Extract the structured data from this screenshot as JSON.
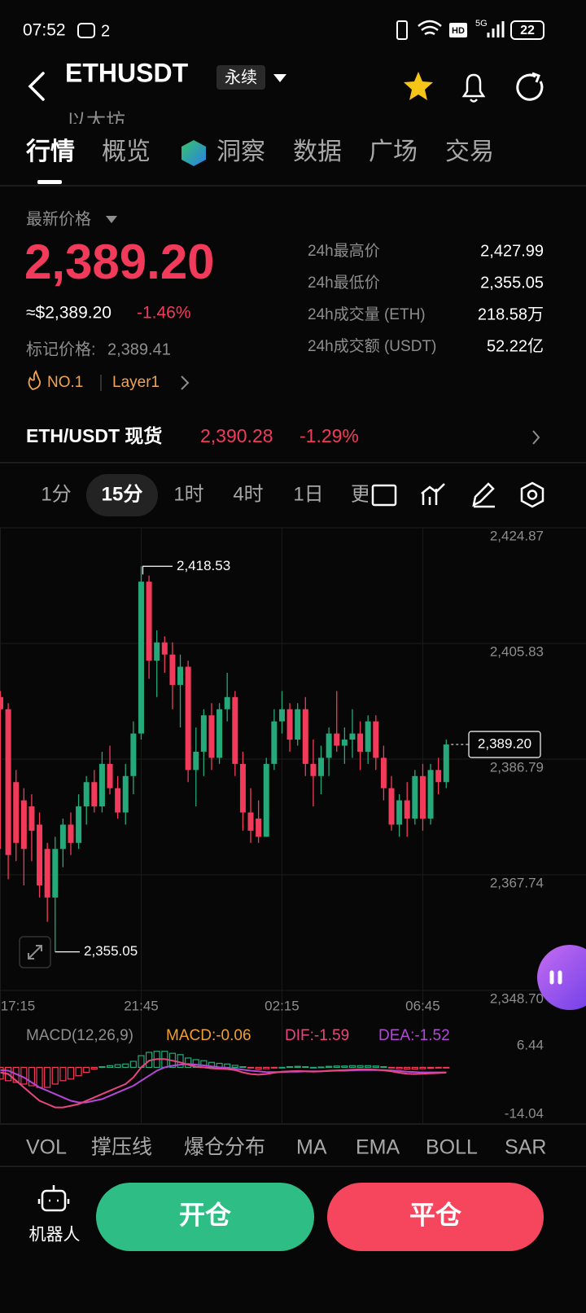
{
  "status_bar": {
    "time": "07:52",
    "notification_count": "2",
    "hd": "HD",
    "network": "5G",
    "battery": "22"
  },
  "header": {
    "symbol": "ETHUSDT",
    "contract_type": "永续",
    "subtitle": "以太坊"
  },
  "tabs": {
    "items": [
      "行情",
      "概览",
      "洞察",
      "数据",
      "广场",
      "交易"
    ],
    "active": 0
  },
  "price": {
    "label": "最新价格",
    "last": "2,389.20",
    "usd": "≈$2,389.20",
    "change": "-1.46%",
    "mark_label": "标记价格:",
    "mark_price": "2,389.41",
    "rank": "NO.1",
    "tag": "Layer1"
  },
  "stats": [
    {
      "label": "24h最高价",
      "value": "2,427.99"
    },
    {
      "label": "24h最低价",
      "value": "2,355.05"
    },
    {
      "label": "24h成交量 (ETH)",
      "value": "218.58万"
    },
    {
      "label": "24h成交额 (USDT)",
      "value": "52.22亿"
    }
  ],
  "spot": {
    "pair": "ETH/USDT 现货",
    "price": "2,390.28",
    "change": "-1.29%"
  },
  "intervals": {
    "items": [
      "1分",
      "15分",
      "1时",
      "4时",
      "1日",
      "更"
    ],
    "active": 1
  },
  "chart": {
    "type": "candlestick",
    "up_color": "#25a87a",
    "down_color": "#f23b5b",
    "ylim": [
      2348.7,
      2424.87
    ],
    "yticks": [
      {
        "value": 2424.87,
        "label": "2,424.87"
      },
      {
        "value": 2405.83,
        "label": "2,405.83"
      },
      {
        "value": 2386.79,
        "label": "2,386.79"
      },
      {
        "value": 2367.74,
        "label": "2,367.74"
      },
      {
        "value": 2348.7,
        "label": "2,348.70"
      }
    ],
    "categories": [
      "17:15",
      null,
      null,
      null,
      null,
      null,
      null,
      null,
      null,
      null,
      null,
      null,
      null,
      null,
      null,
      null,
      null,
      null,
      "21:45",
      null,
      null,
      null,
      null,
      null,
      null,
      null,
      null,
      null,
      null,
      null,
      null,
      null,
      null,
      null,
      null,
      null,
      "02:15",
      null,
      null,
      null,
      null,
      null,
      null,
      null,
      null,
      null,
      null,
      null,
      null,
      null,
      null,
      null,
      null,
      null,
      "06:45",
      null,
      null,
      null
    ],
    "open": [
      2397,
      2395,
      2383,
      2380,
      2379,
      2376,
      2372,
      2364,
      2372,
      2376,
      2373,
      2379,
      2383,
      2379,
      2386,
      2382,
      2378,
      2384,
      2391,
      2416,
      2403,
      2406,
      2404,
      2399,
      2402,
      2385,
      2388,
      2394,
      2387,
      2395,
      2397,
      2386,
      2378,
      2377,
      2374,
      2386,
      2393,
      2395,
      2390,
      2395,
      2386,
      2384,
      2387,
      2391,
      2389,
      2390,
      2391,
      2388,
      2393,
      2387,
      2382,
      2376,
      2380,
      2377,
      2384,
      2377,
      2385,
      2383
    ],
    "high": [
      2398,
      2396,
      2385,
      2382,
      2381,
      2378,
      2373,
      2374,
      2377,
      2378,
      2381,
      2384,
      2385,
      2388,
      2389,
      2384,
      2386,
      2393,
      2418.53,
      2417,
      2408,
      2407,
      2406,
      2404,
      2403,
      2392,
      2395,
      2396,
      2396,
      2401,
      2398,
      2388,
      2382,
      2380,
      2387,
      2395,
      2398,
      2396,
      2396,
      2397,
      2390,
      2389,
      2392,
      2398,
      2392,
      2395,
      2393,
      2394,
      2394,
      2389,
      2384,
      2381,
      2383,
      2385,
      2386,
      2386,
      2387,
      2390
    ],
    "low": [
      2372,
      2367,
      2370,
      2366,
      2370,
      2364,
      2360,
      2355.05,
      2369,
      2371,
      2372,
      2376,
      2378,
      2378,
      2381,
      2377,
      2376,
      2381,
      2390,
      2400,
      2397,
      2401,
      2395,
      2392,
      2383,
      2379,
      2384,
      2385,
      2386,
      2393,
      2384,
      2375,
      2373,
      2373,
      2374,
      2385,
      2391,
      2388,
      2389,
      2384,
      2379,
      2381,
      2384,
      2388,
      2386,
      2387,
      2385,
      2386,
      2385,
      2380,
      2375,
      2374,
      2374,
      2376,
      2375,
      2376,
      2381,
      2382
    ],
    "close": [
      2395,
      2371,
      2373,
      2372,
      2375,
      2366,
      2364,
      2372,
      2376,
      2373,
      2379,
      2383,
      2379,
      2386,
      2382,
      2378,
      2384,
      2391,
      2416,
      2403,
      2406,
      2404,
      2399,
      2402,
      2385,
      2388,
      2394,
      2387,
      2395,
      2397,
      2386,
      2378,
      2375,
      2374,
      2386,
      2393,
      2395,
      2390,
      2395,
      2386,
      2384,
      2387,
      2391,
      2389,
      2390,
      2391,
      2388,
      2393,
      2387,
      2382,
      2376,
      2380,
      2377,
      2384,
      2377,
      2385,
      2383,
      2389.2
    ],
    "high_label": {
      "value": 2418.53,
      "text": "2,418.53"
    },
    "low_label": {
      "value": 2355.05,
      "text": "2,355.05"
    },
    "last_label": {
      "value": 2389.2,
      "text": "2,389.20"
    }
  },
  "macd": {
    "title": "MACD(12,26,9)",
    "macd_label": "MACD:-0.06",
    "dif_label": "DIF:-1.59",
    "dea_label": "DEA:-1.52",
    "colors": {
      "title": "#8e8e8e",
      "macd": "#f0a030",
      "dif": "#e8467f",
      "dea": "#b348d6"
    },
    "ylim": [
      -14.04,
      6.44
    ],
    "yticks": [
      6.44,
      -14.04
    ],
    "histogram": [
      -3.5,
      -4,
      -4.5,
      -5,
      -5.5,
      -6,
      -6,
      -5,
      -4,
      -3.5,
      -2.5,
      -1.5,
      -0.5,
      0.2,
      0.5,
      0.8,
      1,
      1.8,
      3.5,
      4.5,
      4.8,
      4.8,
      4.2,
      3.8,
      2.8,
      2.3,
      2,
      1.5,
      1.2,
      1,
      0.6,
      0.2,
      -0.2,
      -0.5,
      -0.4,
      -0.2,
      0,
      0.2,
      0.3,
      0.2,
      0,
      0.1,
      0.3,
      0.4,
      0.4,
      0.5,
      0.5,
      0.5,
      0.4,
      0.2,
      -0.1,
      -0.4,
      -0.5,
      -0.5,
      -0.4,
      -0.3,
      -0.1,
      -0.06
    ],
    "dif": [
      -1.5,
      -2,
      -4,
      -6,
      -8,
      -10,
      -11,
      -12,
      -12,
      -11.5,
      -11,
      -10,
      -9,
      -8,
      -7,
      -6,
      -5,
      -3,
      0,
      2,
      2.5,
      2.5,
      2,
      1.5,
      0.8,
      0.2,
      0,
      -0.3,
      -0.4,
      -0.5,
      -0.8,
      -1.5,
      -2,
      -2.2,
      -2,
      -1.6,
      -1.3,
      -1.2,
      -1.1,
      -1.2,
      -1.3,
      -1.2,
      -1,
      -0.9,
      -0.8,
      -0.7,
      -0.6,
      -0.6,
      -0.7,
      -0.9,
      -1.2,
      -1.6,
      -1.9,
      -2,
      -1.9,
      -1.8,
      -1.7,
      -1.59
    ],
    "dea": [
      -0.8,
      -1,
      -2,
      -3,
      -4.5,
      -6,
      -7,
      -8,
      -9,
      -10,
      -10.5,
      -10.5,
      -10,
      -9.5,
      -8.5,
      -7.5,
      -6.5,
      -5.5,
      -4,
      -2.5,
      -1,
      0,
      0.5,
      0.8,
      1,
      0.8,
      0.6,
      0.3,
      0,
      -0.2,
      -0.4,
      -0.7,
      -1,
      -1.2,
      -1.4,
      -1.4,
      -1.4,
      -1.3,
      -1.3,
      -1.2,
      -1.2,
      -1.2,
      -1.1,
      -1,
      -1,
      -0.9,
      -0.8,
      -0.8,
      -0.8,
      -0.8,
      -0.9,
      -1.1,
      -1.3,
      -1.4,
      -1.5,
      -1.5,
      -1.5,
      -1.52
    ]
  },
  "indicators": [
    "VOL",
    "撑压线",
    "爆仓分布",
    "MA",
    "EMA",
    "BOLL",
    "SAR"
  ],
  "footer": {
    "robot": "机器人",
    "open": "开仓",
    "close": "平仓"
  }
}
